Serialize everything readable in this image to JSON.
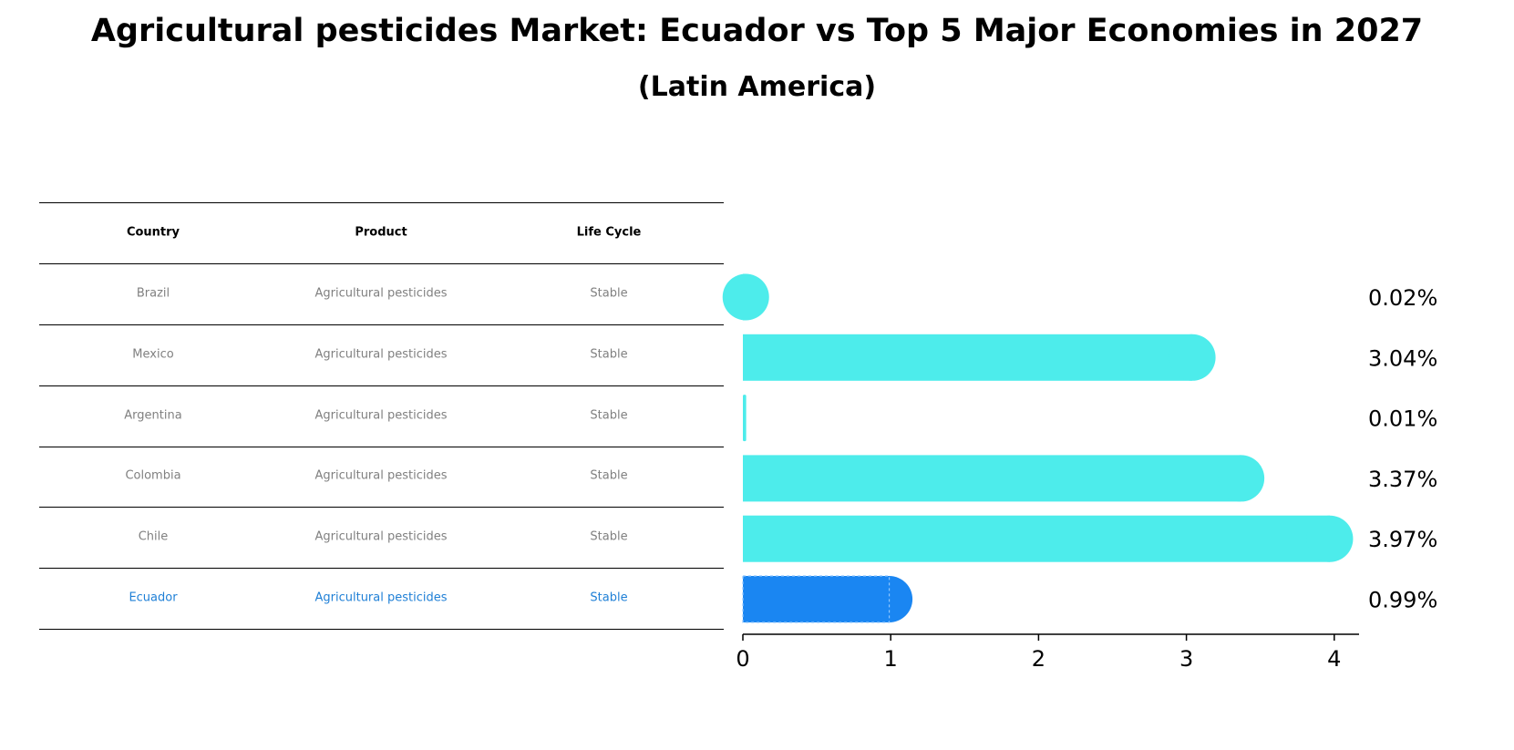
{
  "title": "Agricultural pesticides Market: Ecuador vs Top 5 Major Economies in 2027",
  "subtitle": "(Latin America)",
  "table": {
    "headers": [
      "Country",
      "Product",
      "Life Cycle"
    ],
    "rows": [
      {
        "country": "Brazil",
        "product": "Agricultural pesticides",
        "life_cycle": "Stable",
        "highlight": false
      },
      {
        "country": "Mexico",
        "product": "Agricultural pesticides",
        "life_cycle": "Stable",
        "highlight": false
      },
      {
        "country": "Argentina",
        "product": "Agricultural pesticides",
        "life_cycle": "Stable",
        "highlight": false
      },
      {
        "country": "Colombia",
        "product": "Agricultural pesticides",
        "life_cycle": "Stable",
        "highlight": false
      },
      {
        "country": "Chile",
        "product": "Agricultural pesticides",
        "life_cycle": "Stable",
        "highlight": false
      },
      {
        "country": "Ecuador",
        "product": "Agricultural pesticides",
        "life_cycle": "Stable",
        "highlight": true
      }
    ]
  },
  "colors": {
    "bar": "#4deceb",
    "highlight_bar": "#1a86f2",
    "highlight_text": "#1e7fd6",
    "muted_text": "#808080"
  },
  "chart_data": {
    "type": "bar",
    "orientation": "horizontal",
    "categories": [
      "Brazil",
      "Mexico",
      "Argentina",
      "Colombia",
      "Chile",
      "Ecuador"
    ],
    "values": [
      0.02,
      3.04,
      0.01,
      3.37,
      3.97,
      0.99
    ],
    "labels": [
      "0.02%",
      "3.04%",
      "0.01%",
      "3.37%",
      "3.97%",
      "0.99%"
    ],
    "highlight": "Ecuador",
    "xticks": [
      0,
      1,
      2,
      3,
      4
    ],
    "xlim": [
      0,
      4.18
    ],
    "xlabel": "",
    "ylabel": ""
  }
}
